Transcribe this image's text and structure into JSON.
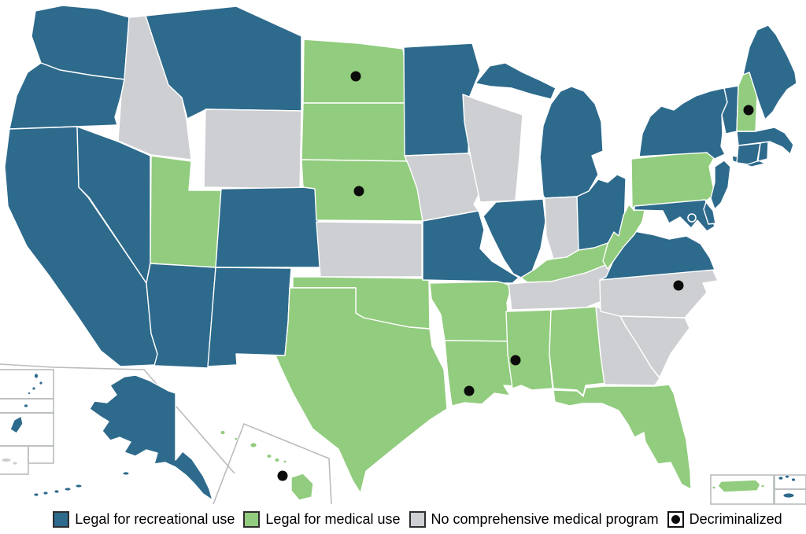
{
  "background": "#ffffff",
  "legend": {
    "swatch_border_color": "#2e2e2e",
    "text_color": "#000000",
    "items": [
      {
        "key": "recreational",
        "label": "Legal for recreational use",
        "swatch_color": "#2D6A8C",
        "swatch_type": "fill"
      },
      {
        "key": "medical",
        "label": "Legal for medical use",
        "swatch_color": "#92CC7E",
        "swatch_type": "fill"
      },
      {
        "key": "none",
        "label": "No comprehensive medical program",
        "swatch_color": "#CDCFD2",
        "swatch_type": "fill"
      },
      {
        "key": "decriminalized",
        "label": "Decriminalized",
        "swatch_color": "#0B0B0B",
        "swatch_type": "dot"
      }
    ]
  },
  "map": {
    "status_colors": {
      "recreational": "#2D6A8C",
      "medical": "#92CC7E",
      "none": "#CDCFD2"
    },
    "state_border_color": "#ffffff",
    "inset_frame_color": "#b9bcbe",
    "decriminalized_dot_color": "#0b0b0b",
    "dc_marker": {
      "code": "DC",
      "name": "District of Columbia",
      "status": "recreational",
      "style": "white-outlined-circle"
    },
    "regions": [
      {
        "code": "WA",
        "name": "Washington",
        "status": "recreational",
        "decriminalized": false
      },
      {
        "code": "OR",
        "name": "Oregon",
        "status": "recreational",
        "decriminalized": false
      },
      {
        "code": "CA",
        "name": "California",
        "status": "recreational",
        "decriminalized": false
      },
      {
        "code": "NV",
        "name": "Nevada",
        "status": "recreational",
        "decriminalized": false
      },
      {
        "code": "ID",
        "name": "Idaho",
        "status": "none",
        "decriminalized": false
      },
      {
        "code": "MT",
        "name": "Montana",
        "status": "recreational",
        "decriminalized": false
      },
      {
        "code": "WY",
        "name": "Wyoming",
        "status": "none",
        "decriminalized": false
      },
      {
        "code": "UT",
        "name": "Utah",
        "status": "medical",
        "decriminalized": false
      },
      {
        "code": "CO",
        "name": "Colorado",
        "status": "recreational",
        "decriminalized": false
      },
      {
        "code": "AZ",
        "name": "Arizona",
        "status": "recreational",
        "decriminalized": false
      },
      {
        "code": "NM",
        "name": "New Mexico",
        "status": "recreational",
        "decriminalized": false
      },
      {
        "code": "ND",
        "name": "North Dakota",
        "status": "medical",
        "decriminalized": true
      },
      {
        "code": "SD",
        "name": "South Dakota",
        "status": "medical",
        "decriminalized": false
      },
      {
        "code": "NE",
        "name": "Nebraska",
        "status": "medical",
        "decriminalized": true
      },
      {
        "code": "KS",
        "name": "Kansas",
        "status": "none",
        "decriminalized": false
      },
      {
        "code": "OK",
        "name": "Oklahoma",
        "status": "medical",
        "decriminalized": false
      },
      {
        "code": "TX",
        "name": "Texas",
        "status": "medical",
        "decriminalized": false
      },
      {
        "code": "MN",
        "name": "Minnesota",
        "status": "recreational",
        "decriminalized": false
      },
      {
        "code": "IA",
        "name": "Iowa",
        "status": "none",
        "decriminalized": false
      },
      {
        "code": "MO",
        "name": "Missouri",
        "status": "recreational",
        "decriminalized": false
      },
      {
        "code": "AR",
        "name": "Arkansas",
        "status": "medical",
        "decriminalized": false
      },
      {
        "code": "LA",
        "name": "Louisiana",
        "status": "medical",
        "decriminalized": true
      },
      {
        "code": "WI",
        "name": "Wisconsin",
        "status": "none",
        "decriminalized": false
      },
      {
        "code": "IL",
        "name": "Illinois",
        "status": "recreational",
        "decriminalized": false
      },
      {
        "code": "MI",
        "name": "Michigan",
        "status": "recreational",
        "decriminalized": false
      },
      {
        "code": "IN",
        "name": "Indiana",
        "status": "none",
        "decriminalized": false
      },
      {
        "code": "OH",
        "name": "Ohio",
        "status": "recreational",
        "decriminalized": false
      },
      {
        "code": "KY",
        "name": "Kentucky",
        "status": "medical",
        "decriminalized": false
      },
      {
        "code": "TN",
        "name": "Tennessee",
        "status": "none",
        "decriminalized": false
      },
      {
        "code": "MS",
        "name": "Mississippi",
        "status": "medical",
        "decriminalized": true
      },
      {
        "code": "AL",
        "name": "Alabama",
        "status": "medical",
        "decriminalized": false
      },
      {
        "code": "GA",
        "name": "Georgia",
        "status": "none",
        "decriminalized": false
      },
      {
        "code": "FL",
        "name": "Florida",
        "status": "medical",
        "decriminalized": false
      },
      {
        "code": "SC",
        "name": "South Carolina",
        "status": "none",
        "decriminalized": false
      },
      {
        "code": "NC",
        "name": "North Carolina",
        "status": "none",
        "decriminalized": true
      },
      {
        "code": "VA",
        "name": "Virginia",
        "status": "recreational",
        "decriminalized": false
      },
      {
        "code": "WV",
        "name": "West Virginia",
        "status": "medical",
        "decriminalized": false
      },
      {
        "code": "PA",
        "name": "Pennsylvania",
        "status": "medical",
        "decriminalized": false
      },
      {
        "code": "MD",
        "name": "Maryland",
        "status": "recreational",
        "decriminalized": false
      },
      {
        "code": "DE",
        "name": "Delaware",
        "status": "recreational",
        "decriminalized": false
      },
      {
        "code": "NJ",
        "name": "New Jersey",
        "status": "recreational",
        "decriminalized": false
      },
      {
        "code": "NY",
        "name": "New York",
        "status": "recreational",
        "decriminalized": false
      },
      {
        "code": "CT",
        "name": "Connecticut",
        "status": "recreational",
        "decriminalized": false
      },
      {
        "code": "RI",
        "name": "Rhode Island",
        "status": "recreational",
        "decriminalized": false
      },
      {
        "code": "MA",
        "name": "Massachusetts",
        "status": "recreational",
        "decriminalized": false
      },
      {
        "code": "VT",
        "name": "Vermont",
        "status": "recreational",
        "decriminalized": false
      },
      {
        "code": "NH",
        "name": "New Hampshire",
        "status": "medical",
        "decriminalized": true
      },
      {
        "code": "ME",
        "name": "Maine",
        "status": "recreational",
        "decriminalized": false
      },
      {
        "code": "AK",
        "name": "Alaska",
        "status": "recreational",
        "decriminalized": false
      },
      {
        "code": "HI",
        "name": "Hawaii",
        "status": "medical",
        "decriminalized": true
      },
      {
        "code": "PR",
        "name": "Puerto Rico",
        "status": "medical",
        "decriminalized": false
      },
      {
        "code": "VI",
        "name": "U.S. Virgin Islands",
        "status": "recreational",
        "decriminalized": false
      },
      {
        "code": "GU",
        "name": "Guam",
        "status": "recreational",
        "decriminalized": false
      },
      {
        "code": "MP",
        "name": "Northern Mariana Islands",
        "status": "recreational",
        "decriminalized": false
      },
      {
        "code": "AS",
        "name": "American Samoa",
        "status": "none",
        "decriminalized": false
      }
    ]
  }
}
